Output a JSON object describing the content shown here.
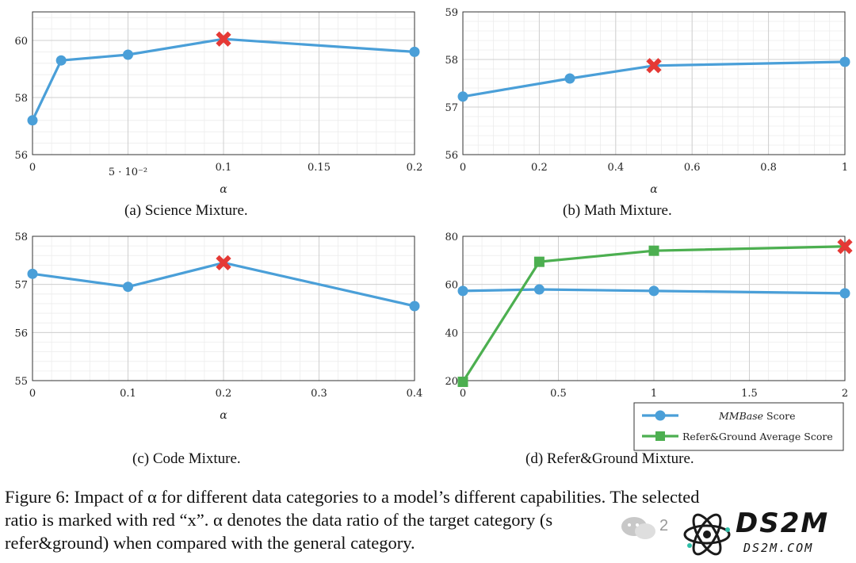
{
  "chart_data": [
    {
      "id": "a",
      "type": "line",
      "caption": "(a) Science Mixture.",
      "xlabel": "α",
      "xlim": [
        0,
        0.2
      ],
      "ylim": [
        56,
        61
      ],
      "xticks": [
        {
          "v": 0,
          "label": "0"
        },
        {
          "v": 0.05,
          "label": "5 · 10⁻²"
        },
        {
          "v": 0.1,
          "label": "0.1"
        },
        {
          "v": 0.15,
          "label": "0.15"
        },
        {
          "v": 0.2,
          "label": "0.2"
        }
      ],
      "yticks": [
        {
          "v": 56,
          "label": "56"
        },
        {
          "v": 58,
          "label": "58"
        },
        {
          "v": 60,
          "label": "60"
        }
      ],
      "series": [
        {
          "name": "MMBase Score",
          "color": "#4a9fd8",
          "marker": "circle",
          "x": [
            0,
            0.015,
            0.05,
            0.1,
            0.2
          ],
          "y": [
            57.2,
            59.3,
            59.5,
            60.05,
            59.6
          ]
        }
      ],
      "selected": {
        "x": 0.1,
        "y": 60.05,
        "color": "#e53935"
      }
    },
    {
      "id": "b",
      "type": "line",
      "caption": "(b) Math Mixture.",
      "xlabel": "α",
      "xlim": [
        0,
        1
      ],
      "ylim": [
        56,
        59
      ],
      "xticks": [
        {
          "v": 0,
          "label": "0"
        },
        {
          "v": 0.2,
          "label": "0.2"
        },
        {
          "v": 0.4,
          "label": "0.4"
        },
        {
          "v": 0.6,
          "label": "0.6"
        },
        {
          "v": 0.8,
          "label": "0.8"
        },
        {
          "v": 1,
          "label": "1"
        }
      ],
      "yticks": [
        {
          "v": 56,
          "label": "56"
        },
        {
          "v": 57,
          "label": "57"
        },
        {
          "v": 58,
          "label": "58"
        },
        {
          "v": 59,
          "label": "59"
        }
      ],
      "series": [
        {
          "name": "MMBase Score",
          "color": "#4a9fd8",
          "marker": "circle",
          "x": [
            0,
            0.28,
            0.5,
            1
          ],
          "y": [
            57.22,
            57.6,
            57.87,
            57.95
          ]
        }
      ],
      "selected": {
        "x": 0.5,
        "y": 57.87,
        "color": "#e53935"
      }
    },
    {
      "id": "c",
      "type": "line",
      "caption": "(c) Code Mixture.",
      "xlabel": "α",
      "xlim": [
        0,
        0.4
      ],
      "ylim": [
        55,
        58
      ],
      "xticks": [
        {
          "v": 0,
          "label": "0"
        },
        {
          "v": 0.1,
          "label": "0.1"
        },
        {
          "v": 0.2,
          "label": "0.2"
        },
        {
          "v": 0.3,
          "label": "0.3"
        },
        {
          "v": 0.4,
          "label": "0.4"
        }
      ],
      "yticks": [
        {
          "v": 55,
          "label": "55"
        },
        {
          "v": 56,
          "label": "56"
        },
        {
          "v": 57,
          "label": "57"
        },
        {
          "v": 58,
          "label": "58"
        }
      ],
      "series": [
        {
          "name": "MMBase Score",
          "color": "#4a9fd8",
          "marker": "circle",
          "x": [
            0,
            0.1,
            0.2,
            0.4
          ],
          "y": [
            57.22,
            56.95,
            57.45,
            56.55
          ]
        }
      ],
      "selected": {
        "x": 0.2,
        "y": 57.45,
        "color": "#e53935"
      }
    },
    {
      "id": "d",
      "type": "line",
      "caption": "(d) Refer&Ground Mixture.",
      "xlabel": "",
      "xlim": [
        0,
        2
      ],
      "ylim": [
        20,
        80
      ],
      "xticks": [
        {
          "v": 0,
          "label": "0"
        },
        {
          "v": 0.5,
          "label": "0.5"
        },
        {
          "v": 1,
          "label": "1"
        },
        {
          "v": 1.5,
          "label": "1.5"
        },
        {
          "v": 2,
          "label": "2"
        }
      ],
      "yticks": [
        {
          "v": 20,
          "label": "20"
        },
        {
          "v": 40,
          "label": "40"
        },
        {
          "v": 60,
          "label": "60"
        },
        {
          "v": 80,
          "label": "80"
        }
      ],
      "series": [
        {
          "name": "MMBase Score",
          "color": "#4a9fd8",
          "marker": "circle",
          "x": [
            0,
            0.4,
            1,
            2
          ],
          "y": [
            57.3,
            57.9,
            57.3,
            56.3
          ]
        },
        {
          "name": "Refer&Ground Average Score",
          "color": "#4caf50",
          "marker": "square",
          "x": [
            0,
            0.4,
            1,
            2
          ],
          "y": [
            19.5,
            69.4,
            74,
            75.8
          ]
        }
      ],
      "selected": {
        "x": 2,
        "y": 75.8,
        "color": "#e53935"
      },
      "legend": {
        "position": "bottom-right",
        "items": [
          "MMBase Score",
          "Refer&Ground Average Score"
        ]
      }
    }
  ],
  "figure_caption": {
    "line1": "Figure 6: Impact of α for different data categories to a model’s different capabilities. The selected",
    "line2": "ratio is marked with red “x”. α denotes the data ratio of the target category (s",
    "line3": "refer&ground) when compared with the general category."
  },
  "watermark": {
    "brand": "DS2M",
    "url": "DS2M.COM",
    "fragment": "2"
  }
}
